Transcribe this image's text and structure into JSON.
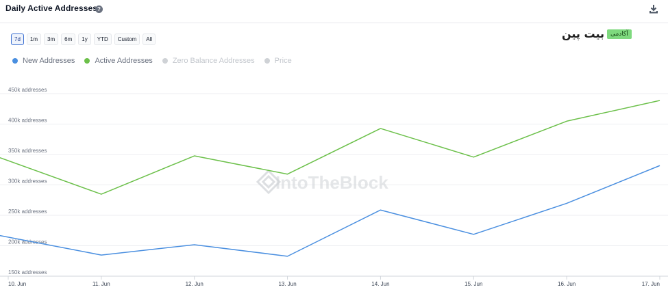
{
  "header": {
    "title": "Daily Active Addresses",
    "help_symbol": "?"
  },
  "ranges": [
    {
      "label": "7d",
      "active": true
    },
    {
      "label": "1m",
      "active": false
    },
    {
      "label": "3m",
      "active": false
    },
    {
      "label": "6m",
      "active": false
    },
    {
      "label": "1y",
      "active": false
    },
    {
      "label": "YTD",
      "active": false
    },
    {
      "label": "Custom",
      "active": false
    },
    {
      "label": "All",
      "active": false
    }
  ],
  "brand": {
    "main": "بیت پین",
    "tag": "آکادمی"
  },
  "watermark": "IntoTheBlock",
  "legend": [
    {
      "label": "New Addresses",
      "color": "#4a8fe0",
      "enabled": true
    },
    {
      "label": "Active Addresses",
      "color": "#6cc04a",
      "enabled": true
    },
    {
      "label": "Zero Balance Addresses",
      "color": "#cfd2d6",
      "enabled": false
    },
    {
      "label": "Price",
      "color": "#cfd2d6",
      "enabled": false
    }
  ],
  "colors": {
    "new_addresses": "#4a8fe0",
    "active_addresses": "#6cc04a",
    "grid": "#eceef1",
    "axis": "#d1d5db"
  },
  "chart_data": {
    "type": "line",
    "x": [
      "10. Jun",
      "11. Jun",
      "12. Jun",
      "13. Jun",
      "14. Jun",
      "15. Jun",
      "16. Jun",
      "17. Jun"
    ],
    "series": [
      {
        "name": "New Addresses",
        "values": [
          210000,
          178000,
          195000,
          176000,
          252000,
          212000,
          263000,
          325000
        ]
      },
      {
        "name": "Active Addresses",
        "values": [
          338000,
          278000,
          341000,
          311000,
          386000,
          339000,
          398000,
          432000
        ]
      }
    ],
    "yticks": [
      150000,
      200000,
      250000,
      300000,
      350000,
      400000,
      450000
    ],
    "ytick_labels": [
      "150k addresses",
      "200k addresses",
      "250k addresses",
      "300k addresses",
      "350k addresses",
      "400k addresses",
      "450k addresses"
    ],
    "ylim": [
      150000,
      450000
    ],
    "grid": true,
    "legend_position": "top-left"
  }
}
